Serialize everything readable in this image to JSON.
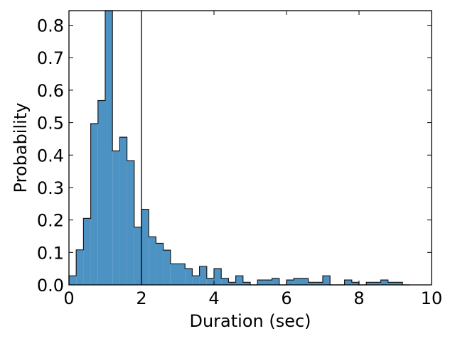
{
  "chart_data": {
    "type": "bar",
    "title": "",
    "xlabel": "Duration (sec)",
    "ylabel": "Probability",
    "xlim": [
      0,
      10
    ],
    "ylim": [
      0,
      0.845
    ],
    "xticks": [
      0,
      2,
      4,
      6,
      8,
      10
    ],
    "xtick_labels": [
      "0",
      "2",
      "4",
      "6",
      "8",
      "10"
    ],
    "yticks": [
      0.0,
      0.1,
      0.2,
      0.3,
      0.4,
      0.5,
      0.6,
      0.7,
      0.8
    ],
    "ytick_labels": [
      "0.0",
      "0.1",
      "0.2",
      "0.3",
      "0.4",
      "0.5",
      "0.6",
      "0.7",
      "0.8"
    ],
    "bin_width": 0.2,
    "bin_starts": [
      0.0,
      0.2,
      0.4,
      0.6,
      0.8,
      1.0,
      1.2,
      1.4,
      1.6,
      1.8,
      2.0,
      2.2,
      2.4,
      2.6,
      2.8,
      3.0,
      3.2,
      3.4,
      3.6,
      3.8,
      4.0,
      4.2,
      4.4,
      4.6,
      4.8,
      5.0,
      5.2,
      5.4,
      5.6,
      5.8,
      6.0,
      6.2,
      6.4,
      6.6,
      6.8,
      7.0,
      7.2,
      7.4,
      7.6,
      7.8,
      8.0,
      8.2,
      8.4,
      8.6,
      8.8,
      9.0,
      9.2
    ],
    "values": [
      0.028,
      0.108,
      0.205,
      0.497,
      0.568,
      0.95,
      0.413,
      0.455,
      0.383,
      0.178,
      0.233,
      0.148,
      0.128,
      0.107,
      0.065,
      0.065,
      0.05,
      0.028,
      0.057,
      0.02,
      0.05,
      0.02,
      0.008,
      0.028,
      0.008,
      0.0,
      0.015,
      0.015,
      0.02,
      0.0,
      0.015,
      0.02,
      0.02,
      0.008,
      0.008,
      0.028,
      0.0,
      0.0,
      0.015,
      0.008,
      0.0,
      0.008,
      0.008,
      0.015,
      0.008,
      0.008,
      0.0
    ],
    "vline_x": 2.0,
    "colors": {
      "bar_fill": "#4c92c3",
      "bar_edge": "#1a1a1a",
      "vline": "#000000",
      "axes": "#000000"
    },
    "grid": false,
    "legend": "none"
  }
}
